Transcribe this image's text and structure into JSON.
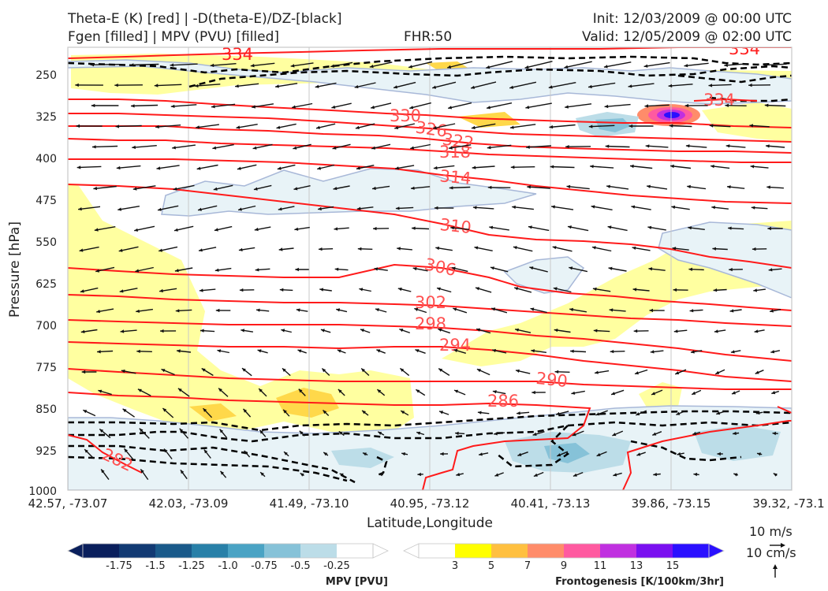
{
  "header": {
    "title_line1": "Theta-E (K) [red] | -D(theta-E)/DZ-[black]",
    "title_line2": "Fgen [filled] | MPV (PVU) [filled]",
    "fhr": "FHR:50",
    "init": "Init: 12/03/2009 @ 00:00 UTC",
    "valid": "Valid: 12/05/2009 @ 02:00 UTC"
  },
  "chart_data": {
    "type": "cross-section",
    "xlabel": "Latitude,Longitude",
    "ylabel": "Pressure [hPa]",
    "ylim": [
      1000,
      200
    ],
    "xticks": [
      "42.57, -73.07",
      "42.03, -73.09",
      "41.49, -73.10",
      "40.95, -73.12",
      "40.41, -73.13",
      "39.86, -73.15",
      "39.32, -73.1"
    ],
    "yticks": [
      250,
      325,
      400,
      475,
      550,
      625,
      700,
      775,
      850,
      925,
      1000
    ],
    "theta_e_contours": [
      {
        "label": "334",
        "level": 334
      },
      {
        "label": "330",
        "level": 330
      },
      {
        "label": "326",
        "level": 326
      },
      {
        "label": "322",
        "level": 322
      },
      {
        "label": "318",
        "level": 318
      },
      {
        "label": "314",
        "level": 314
      },
      {
        "label": "310",
        "level": 310
      },
      {
        "label": "306",
        "level": 306
      },
      {
        "label": "302",
        "level": 302
      },
      {
        "label": "298",
        "level": 298
      },
      {
        "label": "294",
        "level": 294
      },
      {
        "label": "290",
        "level": 290
      },
      {
        "label": "286",
        "level": 286
      },
      {
        "label": "282",
        "level": 282
      }
    ],
    "mpv_colorbar": {
      "label": "MPV [PVU]",
      "ticks": [
        "-1.75",
        "-1.5",
        "-1.25",
        "-1.0",
        "-0.75",
        "-0.5",
        "-0.25"
      ],
      "colors": [
        "#0a1f5c",
        "#123a73",
        "#1a5a8a",
        "#2880a8",
        "#4aa3c4",
        "#86c2d8",
        "#bcdde8",
        "#ffffff"
      ]
    },
    "fgen_colorbar": {
      "label": "Frontogenesis [K/100km/3hr]",
      "ticks": [
        "3",
        "5",
        "7",
        "9",
        "11",
        "13",
        "15"
      ],
      "colors": [
        "#ffffff",
        "#ffff00",
        "#ffc040",
        "#ff8c6a",
        "#ff5aa0",
        "#c030e0",
        "#7a10f0",
        "#2a10ff"
      ]
    },
    "vector_key": {
      "horizontal": "10 m/s",
      "vertical": "10 cm/s"
    }
  }
}
